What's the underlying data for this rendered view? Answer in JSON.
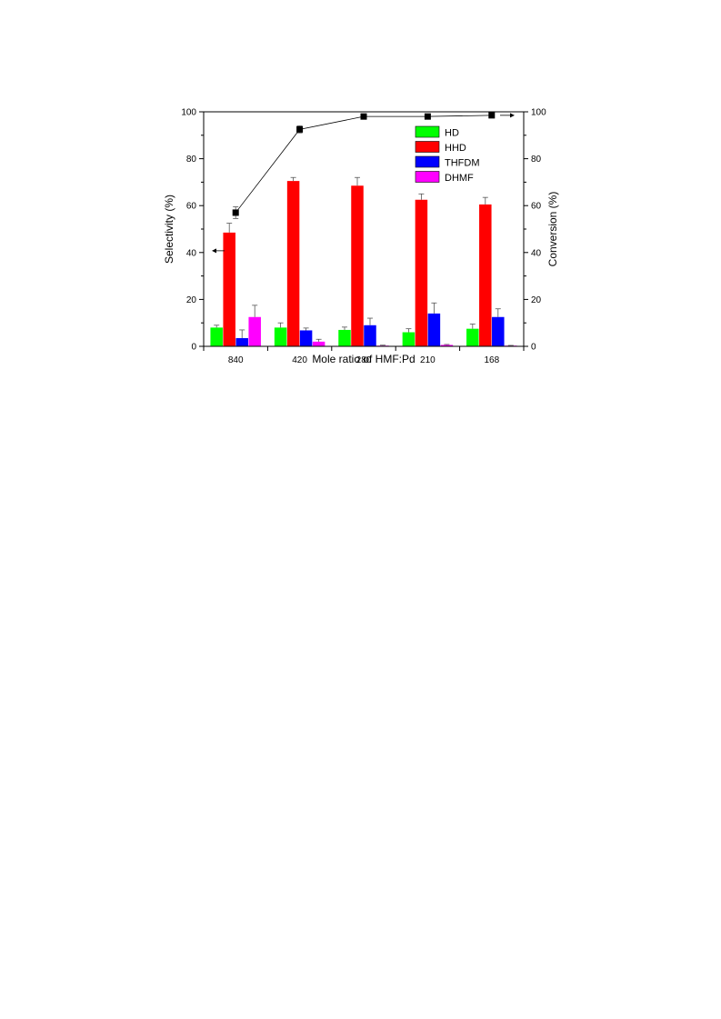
{
  "chart_data": {
    "type": "bar",
    "categories": [
      "840",
      "420",
      "280",
      "210",
      "168"
    ],
    "xlabel": "Mole ratio of HMF:Pd",
    "ylabel": "Selectivity (%)",
    "ylabel_right": "Conversion (%)",
    "ylim": [
      0,
      100
    ],
    "ylim_right": [
      0,
      100
    ],
    "yticks": [
      "0",
      "20",
      "40",
      "60",
      "80",
      "100"
    ],
    "series": [
      {
        "name": "HD",
        "color": "#00ff00",
        "values": [
          8,
          8,
          7,
          6,
          7.5
        ],
        "errors": [
          1,
          2,
          1.2,
          1.5,
          2
        ]
      },
      {
        "name": "HHD",
        "color": "#ff0000",
        "values": [
          48.5,
          70.5,
          68.5,
          62.5,
          60.5
        ],
        "errors": [
          4,
          1.5,
          3.5,
          2.5,
          3
        ]
      },
      {
        "name": "THFDM",
        "color": "#0000ff",
        "values": [
          3.5,
          6.8,
          9,
          14,
          12.5
        ],
        "errors": [
          3.5,
          1,
          3,
          4.5,
          3.5
        ]
      },
      {
        "name": "DHMF",
        "color": "#ff00ff",
        "values": [
          12.5,
          2,
          0.3,
          0.6,
          0.3
        ],
        "errors": [
          5,
          1,
          0.2,
          0.2,
          0.1
        ]
      }
    ],
    "line_series": {
      "axis": "right",
      "color": "#000000",
      "values": [
        57,
        92.5,
        98,
        98,
        98.5
      ],
      "errors": [
        2.5,
        1.5,
        0.5,
        0.5,
        0.5
      ]
    },
    "legend": "top-right",
    "grid": false
  }
}
